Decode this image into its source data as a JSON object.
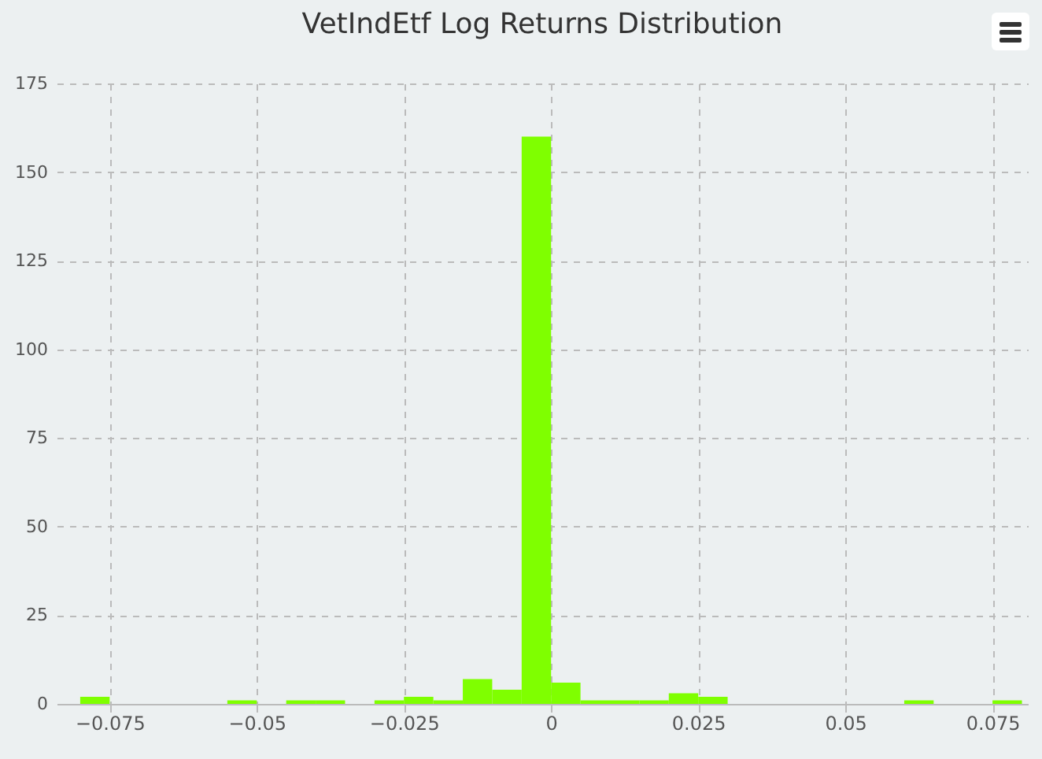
{
  "chart_data": {
    "type": "histogram",
    "title": "VetIndEtf Log Returns Distribution",
    "bins": [
      -0.08,
      -0.075,
      -0.07,
      -0.065,
      -0.06,
      -0.055,
      -0.05,
      -0.045,
      -0.04,
      -0.035,
      -0.03,
      -0.025,
      -0.02,
      -0.015,
      -0.01,
      -0.005,
      0,
      0.005,
      0.01,
      0.015,
      0.02,
      0.025,
      0.03,
      0.035,
      0.04,
      0.045,
      0.05,
      0.055,
      0.06,
      0.065,
      0.07,
      0.075,
      0.08
    ],
    "values": [
      2,
      0,
      0,
      0,
      0,
      1,
      0,
      1,
      1,
      0,
      1,
      2,
      1,
      7,
      4,
      160,
      6,
      1,
      1,
      1,
      3,
      2,
      0,
      0,
      0,
      0,
      0,
      0,
      1,
      0,
      0,
      1
    ],
    "color": "#7fff00",
    "xlim": [
      -0.084,
      0.081
    ],
    "xticks": [
      -0.075,
      -0.05,
      -0.025,
      0,
      0.025,
      0.05,
      0.075
    ],
    "ylim": [
      0,
      175
    ],
    "yticks": [
      0,
      25,
      50,
      75,
      100,
      125,
      150,
      175
    ],
    "grid": true
  }
}
